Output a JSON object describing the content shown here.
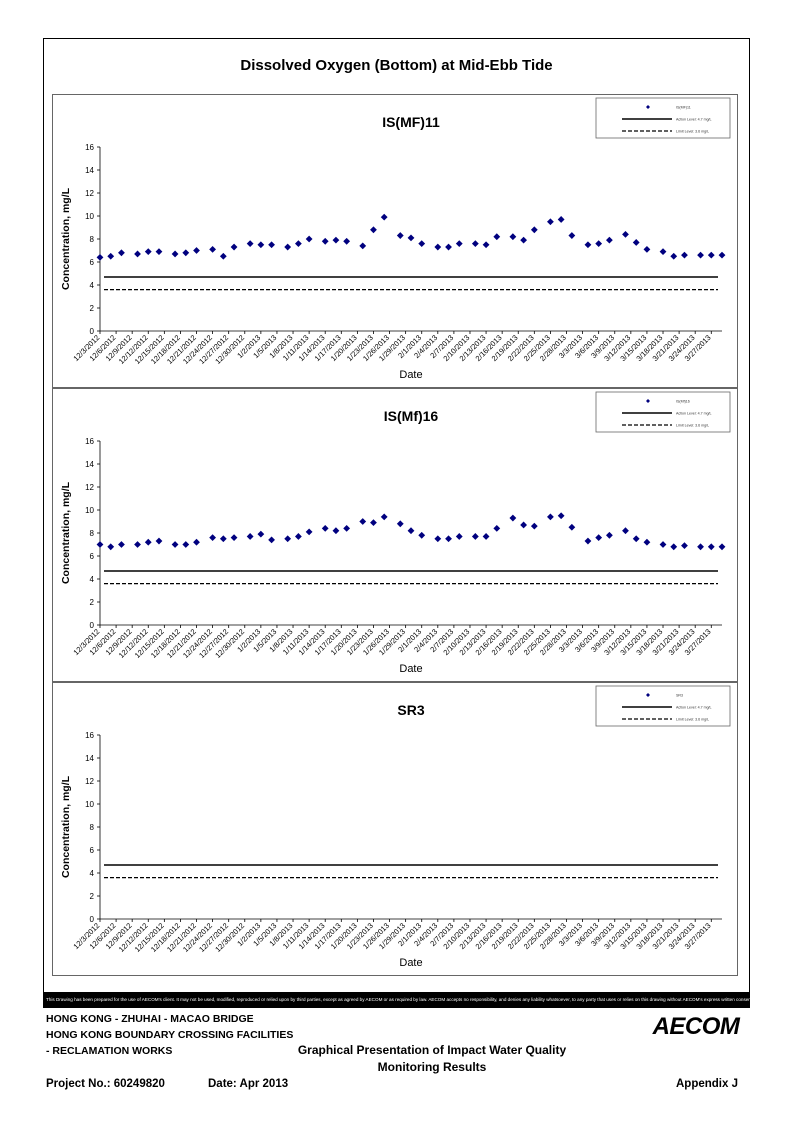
{
  "page_title": "Dissolved Oxygen (Bottom) at Mid-Ebb Tide",
  "disclaimer": "This Drawing has been prepared for the use of AECOM's client. It may not be used, modified, reproduced or relied upon by third parties, except as agreed by AECOM or as required by law. AECOM accepts no responsibility, and denies any liability whatsoever, to any party that uses or relies on this drawing without AECOM's express written consent.",
  "footer": {
    "line1": "HONG KONG - ZHUHAI - MACAO BRIDGE",
    "line2": "HONG KONG BOUNDARY CROSSING FACILITIES",
    "line3": "- RECLAMATION WORKS",
    "title_line1": "Graphical Presentation of Impact Water Quality",
    "title_line2": "Monitoring Results",
    "project": "Project No.: 60249820",
    "date": "Date: Apr 2013",
    "appendix": "Appendix J",
    "logo_text": "AECOM"
  },
  "colors": {
    "marker": "#00007f",
    "line": "#000000"
  },
  "chart_data": [
    {
      "type": "scatter",
      "title": "IS(MF)11",
      "xlabel": "Date",
      "ylabel": "Concentration, mg/L",
      "ylim": [
        0,
        16
      ],
      "yticks": [
        0,
        2,
        4,
        6,
        8,
        10,
        12,
        14,
        16
      ],
      "xlim": [
        "2012-12-03",
        "2013-03-29"
      ],
      "xtick_labels": [
        "12/3/2012",
        "12/6/2012",
        "12/9/2012",
        "12/12/2012",
        "12/15/2012",
        "12/18/2012",
        "12/21/2012",
        "12/24/2012",
        "12/27/2012",
        "12/30/2012",
        "1/2/2013",
        "1/5/2013",
        "1/8/2013",
        "1/11/2013",
        "1/14/2013",
        "1/17/2013",
        "1/20/2013",
        "1/23/2013",
        "1/26/2013",
        "1/29/2013",
        "2/1/2013",
        "2/4/2013",
        "2/7/2013",
        "2/10/2013",
        "2/13/2013",
        "2/16/2013",
        "2/19/2013",
        "2/22/2013",
        "2/25/2013",
        "2/28/2013",
        "3/3/2013",
        "3/6/2013",
        "3/9/2013",
        "3/12/2013",
        "3/15/2013",
        "3/18/2013",
        "3/21/2013",
        "3/24/2013",
        "3/27/2013"
      ],
      "legend": [
        "IS(MF)11",
        "Action Level: 4.7 mg/L",
        "Limit Level: 3.6 mg/L"
      ],
      "action_level": 4.7,
      "limit_level": 3.6,
      "points": [
        [
          "2012-12-03",
          6.4
        ],
        [
          "2012-12-05",
          6.5
        ],
        [
          "2012-12-07",
          6.8
        ],
        [
          "2012-12-10",
          6.7
        ],
        [
          "2012-12-12",
          6.9
        ],
        [
          "2012-12-14",
          6.9
        ],
        [
          "2012-12-17",
          6.7
        ],
        [
          "2012-12-19",
          6.8
        ],
        [
          "2012-12-21",
          7.0
        ],
        [
          "2012-12-24",
          7.1
        ],
        [
          "2012-12-26",
          6.5
        ],
        [
          "2012-12-28",
          7.3
        ],
        [
          "2012-12-31",
          7.6
        ],
        [
          "2013-01-02",
          7.5
        ],
        [
          "2013-01-04",
          7.5
        ],
        [
          "2013-01-07",
          7.3
        ],
        [
          "2013-01-09",
          7.6
        ],
        [
          "2013-01-11",
          8.0
        ],
        [
          "2013-01-14",
          7.8
        ],
        [
          "2013-01-16",
          7.9
        ],
        [
          "2013-01-18",
          7.8
        ],
        [
          "2013-01-21",
          7.4
        ],
        [
          "2013-01-23",
          8.8
        ],
        [
          "2013-01-25",
          9.9
        ],
        [
          "2013-01-28",
          8.3
        ],
        [
          "2013-01-30",
          8.1
        ],
        [
          "2013-02-01",
          7.6
        ],
        [
          "2013-02-04",
          7.3
        ],
        [
          "2013-02-06",
          7.3
        ],
        [
          "2013-02-08",
          7.6
        ],
        [
          "2013-02-11",
          7.6
        ],
        [
          "2013-02-13",
          7.5
        ],
        [
          "2013-02-15",
          8.2
        ],
        [
          "2013-02-18",
          8.2
        ],
        [
          "2013-02-20",
          7.9
        ],
        [
          "2013-02-22",
          8.8
        ],
        [
          "2013-02-25",
          9.5
        ],
        [
          "2013-02-27",
          9.7
        ],
        [
          "2013-03-01",
          8.3
        ],
        [
          "2013-03-04",
          7.5
        ],
        [
          "2013-03-06",
          7.6
        ],
        [
          "2013-03-08",
          7.9
        ],
        [
          "2013-03-11",
          8.4
        ],
        [
          "2013-03-13",
          7.7
        ],
        [
          "2013-03-15",
          7.1
        ],
        [
          "2013-03-18",
          6.9
        ],
        [
          "2013-03-20",
          6.5
        ],
        [
          "2013-03-22",
          6.6
        ],
        [
          "2013-03-25",
          6.6
        ],
        [
          "2013-03-27",
          6.6
        ],
        [
          "2013-03-29",
          6.6
        ]
      ]
    },
    {
      "type": "scatter",
      "title": "IS(Mf)16",
      "xlabel": "Date",
      "ylabel": "Concentration, mg/L",
      "ylim": [
        0,
        16
      ],
      "yticks": [
        0,
        2,
        4,
        6,
        8,
        10,
        12,
        14,
        16
      ],
      "xlim": [
        "2012-12-03",
        "2013-03-29"
      ],
      "xtick_labels": [
        "12/3/2012",
        "12/6/2012",
        "12/9/2012",
        "12/12/2012",
        "12/15/2012",
        "12/18/2012",
        "12/21/2012",
        "12/24/2012",
        "12/27/2012",
        "12/30/2012",
        "1/2/2013",
        "1/5/2013",
        "1/8/2013",
        "1/11/2013",
        "1/14/2013",
        "1/17/2013",
        "1/20/2013",
        "1/23/2013",
        "1/26/2013",
        "1/29/2013",
        "2/1/2013",
        "2/4/2013",
        "2/7/2013",
        "2/10/2013",
        "2/13/2013",
        "2/16/2013",
        "2/19/2013",
        "2/22/2013",
        "2/25/2013",
        "2/28/2013",
        "3/3/2013",
        "3/6/2013",
        "3/9/2013",
        "3/12/2013",
        "3/15/2013",
        "3/18/2013",
        "3/21/2013",
        "3/24/2013",
        "3/27/2013"
      ],
      "legend": [
        "IS(Mf)16",
        "Action Level: 4.7 mg/L",
        "Limit Level: 3.6 mg/L"
      ],
      "action_level": 4.7,
      "limit_level": 3.6,
      "points": [
        [
          "2012-12-03",
          7.0
        ],
        [
          "2012-12-05",
          6.8
        ],
        [
          "2012-12-07",
          7.0
        ],
        [
          "2012-12-10",
          7.0
        ],
        [
          "2012-12-12",
          7.2
        ],
        [
          "2012-12-14",
          7.3
        ],
        [
          "2012-12-17",
          7.0
        ],
        [
          "2012-12-19",
          7.0
        ],
        [
          "2012-12-21",
          7.2
        ],
        [
          "2012-12-24",
          7.6
        ],
        [
          "2012-12-26",
          7.5
        ],
        [
          "2012-12-28",
          7.6
        ],
        [
          "2012-12-31",
          7.7
        ],
        [
          "2013-01-02",
          7.9
        ],
        [
          "2013-01-04",
          7.4
        ],
        [
          "2013-01-07",
          7.5
        ],
        [
          "2013-01-09",
          7.7
        ],
        [
          "2013-01-11",
          8.1
        ],
        [
          "2013-01-14",
          8.4
        ],
        [
          "2013-01-16",
          8.2
        ],
        [
          "2013-01-18",
          8.4
        ],
        [
          "2013-01-21",
          9.0
        ],
        [
          "2013-01-23",
          8.9
        ],
        [
          "2013-01-25",
          9.4
        ],
        [
          "2013-01-28",
          8.8
        ],
        [
          "2013-01-30",
          8.2
        ],
        [
          "2013-02-01",
          7.8
        ],
        [
          "2013-02-04",
          7.5
        ],
        [
          "2013-02-06",
          7.5
        ],
        [
          "2013-02-08",
          7.7
        ],
        [
          "2013-02-11",
          7.7
        ],
        [
          "2013-02-13",
          7.7
        ],
        [
          "2013-02-15",
          8.4
        ],
        [
          "2013-02-18",
          9.3
        ],
        [
          "2013-02-20",
          8.7
        ],
        [
          "2013-02-22",
          8.6
        ],
        [
          "2013-02-25",
          9.4
        ],
        [
          "2013-02-27",
          9.5
        ],
        [
          "2013-03-01",
          8.5
        ],
        [
          "2013-03-04",
          7.3
        ],
        [
          "2013-03-06",
          7.6
        ],
        [
          "2013-03-08",
          7.8
        ],
        [
          "2013-03-11",
          8.2
        ],
        [
          "2013-03-13",
          7.5
        ],
        [
          "2013-03-15",
          7.2
        ],
        [
          "2013-03-18",
          7.0
        ],
        [
          "2013-03-20",
          6.8
        ],
        [
          "2013-03-22",
          6.9
        ],
        [
          "2013-03-25",
          6.8
        ],
        [
          "2013-03-27",
          6.8
        ],
        [
          "2013-03-29",
          6.8
        ]
      ]
    },
    {
      "type": "scatter",
      "title": "SR3",
      "xlabel": "Date",
      "ylabel": "Concentration, mg/L",
      "ylim": [
        0,
        16
      ],
      "yticks": [
        0,
        2,
        4,
        6,
        8,
        10,
        12,
        14,
        16
      ],
      "xlim": [
        "2012-12-03",
        "2013-03-29"
      ],
      "xtick_labels": [
        "12/3/2012",
        "12/6/2012",
        "12/9/2012",
        "12/12/2012",
        "12/15/2012",
        "12/18/2012",
        "12/21/2012",
        "12/24/2012",
        "12/27/2012",
        "12/30/2012",
        "1/2/2013",
        "1/5/2013",
        "1/8/2013",
        "1/11/2013",
        "1/14/2013",
        "1/17/2013",
        "1/20/2013",
        "1/23/2013",
        "1/26/2013",
        "1/29/2013",
        "2/1/2013",
        "2/4/2013",
        "2/7/2013",
        "2/10/2013",
        "2/13/2013",
        "2/16/2013",
        "2/19/2013",
        "2/22/2013",
        "2/25/2013",
        "2/28/2013",
        "3/3/2013",
        "3/6/2013",
        "3/9/2013",
        "3/12/2013",
        "3/15/2013",
        "3/18/2013",
        "3/21/2013",
        "3/24/2013",
        "3/27/2013"
      ],
      "legend": [
        "SR3",
        "Action Level: 4.7 mg/L",
        "Limit Level: 3.6 mg/L"
      ],
      "action_level": 4.7,
      "limit_level": 3.6,
      "points": []
    }
  ]
}
